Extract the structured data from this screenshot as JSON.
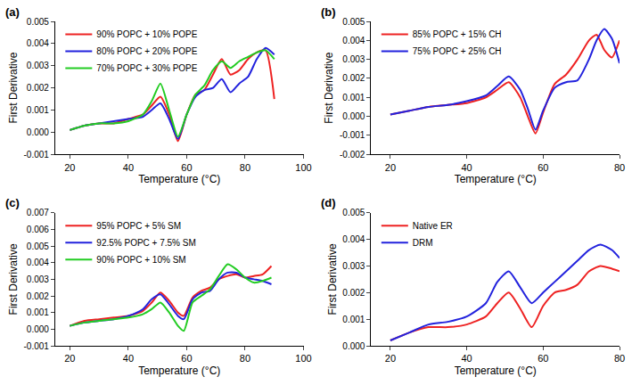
{
  "chart_data": [
    {
      "type": "line",
      "title": "(a)",
      "xlabel": "Temperature (°C)",
      "ylabel": "First Derivative",
      "x": [
        20,
        25,
        30,
        35,
        40,
        45,
        48,
        51,
        54,
        57,
        60,
        63,
        66,
        69,
        72,
        75,
        78,
        81,
        84,
        87,
        90
      ],
      "series": [
        {
          "name": "90% POPC + 10% POPE",
          "color": "#ee2222",
          "values": [
            0.0001,
            0.0003,
            0.0004,
            0.0004,
            0.0006,
            0.0008,
            0.0012,
            0.0016,
            0.0008,
            -0.0004,
            0.0008,
            0.0017,
            0.0019,
            0.0026,
            0.0033,
            0.0026,
            0.0028,
            0.0033,
            0.0036,
            0.0037,
            0.0015
          ]
        },
        {
          "name": "80% POPC + 20% POPE",
          "color": "#2222dd",
          "values": [
            0.0001,
            0.0003,
            0.0004,
            0.0005,
            0.0006,
            0.0007,
            0.001,
            0.0013,
            0.0006,
            -0.0003,
            0.0008,
            0.0016,
            0.0019,
            0.002,
            0.0024,
            0.0018,
            0.0022,
            0.0025,
            0.0033,
            0.0038,
            0.0035
          ]
        },
        {
          "name": "70% POPC + 30% POPE",
          "color": "#22cc22",
          "values": [
            0.0001,
            0.0003,
            0.0004,
            0.0004,
            0.0005,
            0.0008,
            0.0014,
            0.0022,
            0.001,
            -0.0002,
            0.0008,
            0.0017,
            0.0021,
            0.0028,
            0.0032,
            0.0029,
            0.0032,
            0.0034,
            0.0036,
            0.0037,
            0.0033
          ]
        }
      ],
      "xlim": [
        15,
        100
      ],
      "xticks": [
        20,
        40,
        60,
        80,
        100
      ],
      "ylim": [
        -0.001,
        0.005
      ],
      "yticks": [
        -0.001,
        {
          "value": 0,
          "label": "0.000"
        },
        0.001,
        0.002,
        0.003,
        0.004,
        0.005
      ],
      "grid": false,
      "legend": "upper left"
    },
    {
      "type": "line",
      "title": "(b)",
      "xlabel": "Temperature (°C)",
      "ylabel": "First Derivative",
      "x": [
        20,
        25,
        30,
        35,
        40,
        45,
        48,
        51,
        54,
        56,
        58,
        60,
        63,
        66,
        69,
        72,
        74,
        76,
        78,
        80
      ],
      "series": [
        {
          "name": "85% POPC + 15% CH",
          "color": "#ee2222",
          "values": [
            0.0001,
            0.0003,
            0.0005,
            0.0006,
            0.0007,
            0.001,
            0.0014,
            0.0018,
            0.001,
            0.0,
            -0.0009,
            0.0002,
            0.0017,
            0.0022,
            0.003,
            0.004,
            0.0043,
            0.0035,
            0.0031,
            0.004
          ]
        },
        {
          "name": "75% POPC + 25% CH",
          "color": "#2222dd",
          "values": [
            0.0001,
            0.0003,
            0.0005,
            0.0006,
            0.0008,
            0.0011,
            0.0016,
            0.0021,
            0.0014,
            0.0004,
            -0.0007,
            0.0003,
            0.0015,
            0.0018,
            0.0019,
            0.003,
            0.004,
            0.0046,
            0.0041,
            0.0028
          ]
        }
      ],
      "xlim": [
        15,
        80
      ],
      "xticks": [
        20,
        40,
        60,
        80
      ],
      "ylim": [
        -0.002,
        0.005
      ],
      "yticks": [
        -0.002,
        -0.001,
        {
          "value": 0,
          "label": "0.000"
        },
        0.001,
        0.002,
        0.003,
        0.004,
        0.005
      ],
      "grid": false,
      "legend": "upper left"
    },
    {
      "type": "line",
      "title": "(c)",
      "xlabel": "Temperature (°C)",
      "ylabel": "First Derivative",
      "x": [
        20,
        25,
        30,
        35,
        40,
        45,
        48,
        51,
        54,
        57,
        59,
        62,
        65,
        68,
        71,
        74,
        77,
        80,
        83,
        86,
        89
      ],
      "series": [
        {
          "name": "95% POPC + 5% SM",
          "color": "#ee2222",
          "values": [
            0.0002,
            0.0005,
            0.0006,
            0.0007,
            0.0008,
            0.0011,
            0.0016,
            0.0022,
            0.0017,
            0.001,
            0.0008,
            0.0019,
            0.0023,
            0.0025,
            0.003,
            0.0032,
            0.0033,
            0.0031,
            0.0032,
            0.0033,
            0.0038
          ]
        },
        {
          "name": "92.5% POPC + 7.5% SM",
          "color": "#2222dd",
          "values": [
            0.0002,
            0.0004,
            0.0005,
            0.0006,
            0.0008,
            0.0012,
            0.0018,
            0.0021,
            0.0015,
            0.0008,
            0.0006,
            0.0018,
            0.0022,
            0.0023,
            0.003,
            0.0034,
            0.0034,
            0.0031,
            0.003,
            0.0029,
            0.0027
          ]
        },
        {
          "name": "90% POPC + 10% SM",
          "color": "#22cc22",
          "values": [
            0.0002,
            0.0004,
            0.0005,
            0.0006,
            0.0007,
            0.0009,
            0.0012,
            0.0016,
            0.001,
            0.0002,
            -0.0001,
            0.0016,
            0.002,
            0.0024,
            0.0032,
            0.0039,
            0.0036,
            0.0031,
            0.0028,
            0.0029,
            0.0031
          ]
        }
      ],
      "xlim": [
        15,
        100
      ],
      "xticks": [
        20,
        40,
        60,
        80,
        100
      ],
      "ylim": [
        -0.001,
        0.007
      ],
      "yticks": [
        -0.001,
        {
          "value": 0,
          "label": "0.000"
        },
        0.001,
        0.002,
        0.003,
        0.004,
        0.005,
        0.006,
        0.007
      ],
      "grid": false,
      "legend": "upper left"
    },
    {
      "type": "line",
      "title": "(d)",
      "xlabel": "Temperature (°C)",
      "ylabel": "First Derivative",
      "x": [
        20,
        25,
        30,
        35,
        40,
        45,
        48,
        51,
        54,
        57,
        60,
        63,
        66,
        69,
        72,
        75,
        78,
        80
      ],
      "series": [
        {
          "name": "Native ER",
          "color": "#ee2222",
          "values": [
            0.0002,
            0.0005,
            0.0007,
            0.0007,
            0.0008,
            0.0011,
            0.0016,
            0.002,
            0.0014,
            0.0007,
            0.0015,
            0.002,
            0.0021,
            0.0023,
            0.0028,
            0.003,
            0.0029,
            0.0028
          ]
        },
        {
          "name": "DRM",
          "color": "#2222dd",
          "values": [
            0.0002,
            0.0005,
            0.0008,
            0.0009,
            0.0011,
            0.0016,
            0.0024,
            0.0028,
            0.0022,
            0.0016,
            0.002,
            0.0024,
            0.0028,
            0.0032,
            0.0036,
            0.0038,
            0.0036,
            0.0033
          ]
        }
      ],
      "xlim": [
        15,
        80
      ],
      "xticks": [
        20,
        40,
        60,
        80
      ],
      "ylim": [
        0,
        0.005
      ],
      "yticks": [
        {
          "value": 0,
          "label": "0.000"
        },
        0.001,
        0.002,
        0.003,
        0.004,
        0.005
      ],
      "grid": false,
      "legend": "upper left"
    }
  ]
}
